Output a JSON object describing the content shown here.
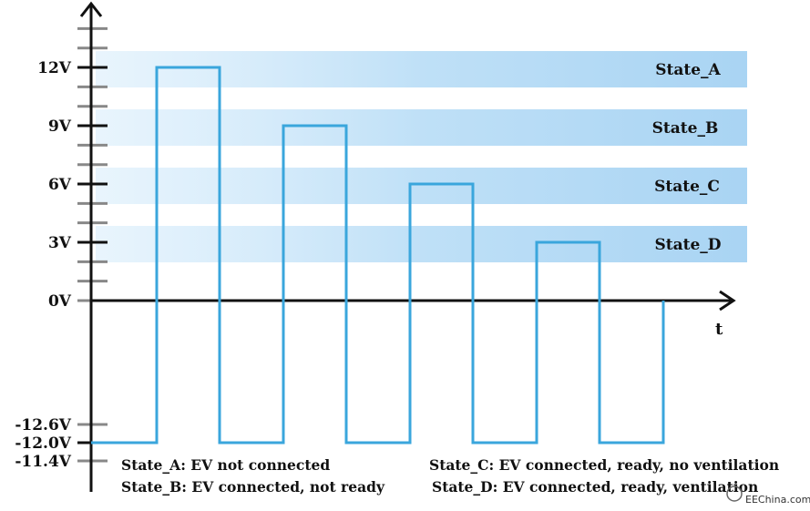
{
  "chart_data": {
    "type": "line",
    "title": "",
    "xlabel": "t",
    "ylabel": "",
    "y_ticks": [
      {
        "value": 12,
        "label": "12V"
      },
      {
        "value": 9,
        "label": "9V"
      },
      {
        "value": 6,
        "label": "6V"
      },
      {
        "value": 3,
        "label": "3V"
      },
      {
        "value": 0,
        "label": "0V"
      },
      {
        "value": -11.4,
        "label": "-11.4V"
      },
      {
        "value": -12.0,
        "label": "-12.0V"
      },
      {
        "value": -12.6,
        "label": "-12.6V"
      }
    ],
    "bands": [
      {
        "label": "State_A",
        "value": 12
      },
      {
        "label": "State_B",
        "value": 9
      },
      {
        "label": "State_C",
        "value": 6
      },
      {
        "label": "State_D",
        "value": 3
      }
    ],
    "series": [
      {
        "values": [
          -12,
          12,
          -12,
          9,
          -12,
          6,
          -12,
          3,
          -12
        ]
      }
    ],
    "legend": [
      "State_A: EV not connected",
      "State_B: EV connected, not ready",
      "State_C: EV connected, ready, no ventilation",
      "State_D: EV connected, ready, ventilation"
    ],
    "colors": {
      "waveform": "#3aa6dc",
      "band": "#bfe0f7",
      "axis": "#111111",
      "tick": "#888888"
    }
  },
  "watermark": "EEChina.com"
}
